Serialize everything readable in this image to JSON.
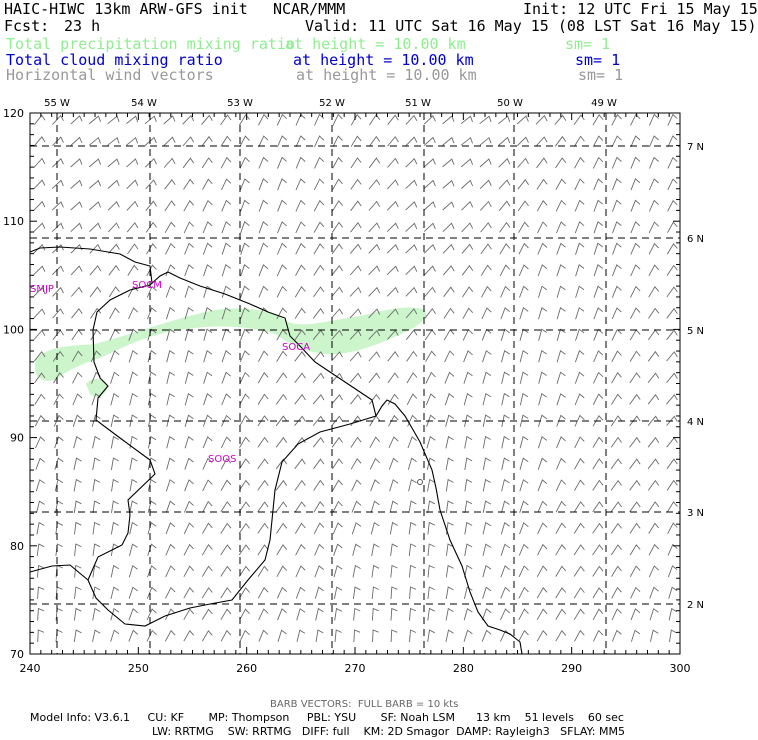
{
  "header": {
    "title": "HAIC-HIWC 13km ARW-GFS init",
    "org": "NCAR/MMM",
    "init": "Init: 12 UTC Fri 15 May 15",
    "fcst_label": "Fcst:",
    "fcst_value": "23 h",
    "valid": "Valid: 11 UTC Sat 16 May 15 (08 LST Sat 16 May 15)"
  },
  "fields": [
    {
      "name": "Total precipitation mixing ratio",
      "level": "at height = 10.00 km",
      "sm": "sm= 1",
      "color": "#90ee90"
    },
    {
      "name": "Total cloud mixing ratio",
      "level": "at height = 10.00 km",
      "sm": "sm= 1",
      "color": "#0000cc"
    },
    {
      "name": "Horizontal wind vectors",
      "level": "at height = 10.00 km",
      "sm": "sm= 1",
      "color": "#999999"
    }
  ],
  "map": {
    "lon_labels": [
      "55 W",
      "54 W",
      "53 W",
      "52 W",
      "51 W",
      "50 W",
      "49 W"
    ],
    "lat_labels": [
      "7 N",
      "6 N",
      "5 N",
      "4 N",
      "3 N",
      "2 N"
    ],
    "x_ticks": [
      "240",
      "250",
      "260",
      "270",
      "280",
      "290",
      "300"
    ],
    "y_ticks": [
      "70",
      "80",
      "90",
      "100",
      "110",
      "120"
    ],
    "x_range": [
      240,
      300
    ],
    "y_range": [
      70,
      120
    ],
    "station_labels": [
      "SMJP",
      "SOCM",
      "SOCA",
      "SOOS"
    ],
    "station_color": "#cc00cc",
    "precip_color": "#ccf5cc"
  },
  "footer": {
    "barb_note": "BARB VECTORS:  FULL BARB = 10 kts",
    "model_line1": "Model Info: V3.6.1     CU: KF       MP: Thompson     PBL: YSU       SF: Noah LSM      13 km    51 levels    60 sec",
    "model_line2": "LW: RRTMG    SW: RRTMG   DIFF: full    KM: 2D Smagor  DAMP: Rayleigh3   SFLAY: MM5"
  }
}
